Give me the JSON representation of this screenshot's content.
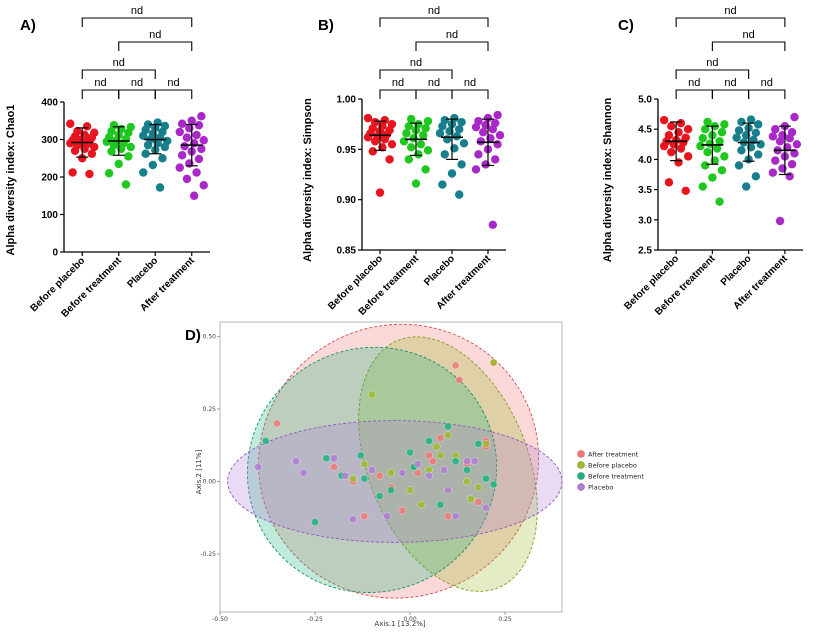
{
  "colors": {
    "before_placebo": "#e8141e",
    "before_treatment": "#1ec81e",
    "placebo": "#177e8c",
    "after_treatment": "#a828c8",
    "pcoa_after_treatment": "#f07878",
    "pcoa_before_placebo": "#9cbb2c",
    "pcoa_before_treatment": "#1cb47c",
    "pcoa_placebo": "#b07cd4"
  },
  "chart_data": [
    {
      "id": "A",
      "panel_label": "A)",
      "type": "scatter",
      "ylabel": "Alpha diversity index: Chao1",
      "ylim": [
        0,
        400
      ],
      "yticks": [
        0,
        100,
        200,
        300,
        400
      ],
      "ytick_labels": [
        "0",
        "100",
        "200",
        "300",
        "400"
      ],
      "categories": [
        "Before placebo",
        "Before treatment",
        "Placebo",
        "After treatment"
      ],
      "series": [
        {
          "name": "Before placebo",
          "mean": 292,
          "sd_low": 253,
          "sd_high": 331,
          "values": [
            342,
            335,
            322,
            318,
            312,
            308,
            305,
            301,
            298,
            295,
            293,
            290,
            288,
            285,
            280,
            275,
            270,
            262,
            250,
            212,
            208
          ]
        },
        {
          "name": "Before treatment",
          "mean": 296,
          "sd_low": 258,
          "sd_high": 334,
          "values": [
            338,
            333,
            328,
            322,
            318,
            312,
            306,
            301,
            297,
            294,
            290,
            285,
            280,
            275,
            268,
            255,
            235,
            210,
            180
          ]
        },
        {
          "name": "Placebo",
          "mean": 300,
          "sd_low": 262,
          "sd_high": 340,
          "values": [
            345,
            340,
            336,
            331,
            326,
            320,
            315,
            310,
            305,
            300,
            296,
            290,
            285,
            280,
            272,
            262,
            250,
            232,
            212,
            172
          ]
        },
        {
          "name": "After treatment",
          "mean": 285,
          "sd_low": 230,
          "sd_high": 340,
          "values": [
            362,
            350,
            342,
            338,
            330,
            320,
            312,
            305,
            298,
            290,
            282,
            275,
            268,
            258,
            248,
            236,
            225,
            212,
            195,
            178,
            150
          ]
        }
      ],
      "comparisons": [
        {
          "groups": [
            0,
            1
          ],
          "label": "nd",
          "level": 0
        },
        {
          "groups": [
            1,
            2
          ],
          "label": "nd",
          "level": 0
        },
        {
          "groups": [
            2,
            3
          ],
          "label": "nd",
          "level": 0
        },
        {
          "groups": [
            0,
            2
          ],
          "label": "nd",
          "level": 1
        },
        {
          "groups": [
            1,
            3
          ],
          "label": "nd",
          "level": 2
        },
        {
          "groups": [
            0,
            3
          ],
          "label": "nd",
          "level": 3
        }
      ]
    },
    {
      "id": "B",
      "panel_label": "B)",
      "type": "scatter",
      "ylabel": "Alpha diversity index: Simpson",
      "ylim": [
        0.85,
        1.0
      ],
      "yticks": [
        0.85,
        0.9,
        0.95,
        1.0
      ],
      "ytick_labels": [
        "0.85",
        "0.90",
        "0.95",
        "1.00"
      ],
      "categories": [
        "Before placebo",
        "Before treatment",
        "Placebo",
        "After treatment"
      ],
      "series": [
        {
          "name": "Before placebo",
          "mean": 0.964,
          "sd_low": 0.949,
          "sd_high": 0.978,
          "values": [
            0.981,
            0.979,
            0.977,
            0.975,
            0.973,
            0.971,
            0.969,
            0.968,
            0.966,
            0.965,
            0.963,
            0.962,
            0.96,
            0.958,
            0.955,
            0.952,
            0.948,
            0.94,
            0.907
          ]
        },
        {
          "name": "Before treatment",
          "mean": 0.96,
          "sd_low": 0.944,
          "sd_high": 0.976,
          "values": [
            0.98,
            0.978,
            0.975,
            0.973,
            0.971,
            0.969,
            0.966,
            0.964,
            0.961,
            0.958,
            0.955,
            0.952,
            0.949,
            0.945,
            0.94,
            0.93,
            0.916
          ]
        },
        {
          "name": "Placebo",
          "mean": 0.962,
          "sd_low": 0.94,
          "sd_high": 0.98,
          "values": [
            0.981,
            0.979,
            0.977,
            0.975,
            0.973,
            0.97,
            0.968,
            0.966,
            0.963,
            0.96,
            0.956,
            0.951,
            0.945,
            0.935,
            0.926,
            0.915,
            0.905
          ]
        },
        {
          "name": "After treatment",
          "mean": 0.957,
          "sd_low": 0.934,
          "sd_high": 0.98,
          "values": [
            0.984,
            0.981,
            0.978,
            0.976,
            0.974,
            0.972,
            0.97,
            0.967,
            0.964,
            0.961,
            0.958,
            0.955,
            0.95,
            0.945,
            0.94,
            0.935,
            0.93,
            0.875
          ]
        }
      ],
      "comparisons": [
        {
          "groups": [
            0,
            1
          ],
          "label": "nd",
          "level": 0
        },
        {
          "groups": [
            1,
            2
          ],
          "label": "nd",
          "level": 0
        },
        {
          "groups": [
            2,
            3
          ],
          "label": "nd",
          "level": 0
        },
        {
          "groups": [
            0,
            2
          ],
          "label": "nd",
          "level": 1
        },
        {
          "groups": [
            1,
            3
          ],
          "label": "nd",
          "level": 2
        },
        {
          "groups": [
            0,
            3
          ],
          "label": "nd",
          "level": 3
        }
      ]
    },
    {
      "id": "C",
      "panel_label": "C)",
      "type": "scatter",
      "ylabel": "Alpha diversity index: Shannon",
      "ylim": [
        2.5,
        5.0
      ],
      "yticks": [
        2.5,
        3.0,
        3.5,
        4.0,
        4.5,
        5.0
      ],
      "ytick_labels": [
        "2.5",
        "3.0",
        "3.5",
        "4.0",
        "4.5",
        "5.0"
      ],
      "categories": [
        "Before placebo",
        "Before treatment",
        "Placebo",
        "After treatment"
      ],
      "series": [
        {
          "name": "Before placebo",
          "mean": 4.3,
          "sd_low": 3.98,
          "sd_high": 4.62,
          "values": [
            4.65,
            4.6,
            4.55,
            4.5,
            4.45,
            4.4,
            4.36,
            4.32,
            4.3,
            4.28,
            4.25,
            4.22,
            4.18,
            4.12,
            4.05,
            3.95,
            3.62,
            3.48
          ]
        },
        {
          "name": "Before treatment",
          "mean": 4.24,
          "sd_low": 3.92,
          "sd_high": 4.55,
          "values": [
            4.62,
            4.58,
            4.55,
            4.5,
            4.45,
            4.4,
            4.35,
            4.3,
            4.26,
            4.22,
            4.18,
            4.12,
            4.05,
            3.98,
            3.9,
            3.82,
            3.7,
            3.55,
            3.3
          ]
        },
        {
          "name": "Placebo",
          "mean": 4.28,
          "sd_low": 3.97,
          "sd_high": 4.6,
          "values": [
            4.66,
            4.62,
            4.58,
            4.52,
            4.48,
            4.44,
            4.4,
            4.36,
            4.32,
            4.28,
            4.25,
            4.2,
            4.15,
            4.08,
            4.0,
            3.9,
            3.72,
            3.55
          ]
        },
        {
          "name": "After treatment",
          "mean": 4.15,
          "sd_low": 3.75,
          "sd_high": 4.55,
          "values": [
            4.7,
            4.55,
            4.5,
            4.45,
            4.4,
            4.38,
            4.35,
            4.3,
            4.25,
            4.2,
            4.15,
            4.1,
            4.05,
            3.98,
            3.92,
            3.85,
            3.78,
            3.72,
            2.98
          ]
        }
      ],
      "comparisons": [
        {
          "groups": [
            0,
            1
          ],
          "label": "nd",
          "level": 0
        },
        {
          "groups": [
            1,
            2
          ],
          "label": "nd",
          "level": 0
        },
        {
          "groups": [
            2,
            3
          ],
          "label": "nd",
          "level": 0
        },
        {
          "groups": [
            0,
            2
          ],
          "label": "nd",
          "level": 1
        },
        {
          "groups": [
            1,
            3
          ],
          "label": "nd",
          "level": 2
        },
        {
          "groups": [
            0,
            3
          ],
          "label": "nd",
          "level": 3
        }
      ]
    },
    {
      "id": "D",
      "panel_label": "D)",
      "type": "scatter",
      "xlabel": "Axis.1   [13.2%]",
      "ylabel": "Axis.2   [11%]",
      "xlim": [
        -0.5,
        0.4
      ],
      "ylim": [
        -0.45,
        0.55
      ],
      "xticks": [
        -0.5,
        -0.25,
        0.0,
        0.25
      ],
      "xtick_labels": [
        "-0.50",
        "-0.25",
        "0.00",
        "0.25"
      ],
      "yticks": [
        -0.25,
        0.0,
        0.25,
        0.5
      ],
      "ytick_labels": [
        "-0.25",
        "0.00",
        "0.25",
        "0.50"
      ],
      "legend": [
        "After treatment",
        "Before placebo",
        "Before treatment",
        "Placebo"
      ],
      "ellipses": [
        {
          "group": "After treatment",
          "cx": -0.03,
          "cy": 0.07,
          "rx": 0.37,
          "ry": 0.47,
          "angle": -22
        },
        {
          "group": "Before placebo",
          "cx": 0.1,
          "cy": 0.06,
          "rx": 0.21,
          "ry": 0.46,
          "angle": -22
        },
        {
          "group": "Before treatment",
          "cx": -0.1,
          "cy": 0.04,
          "rx": 0.33,
          "ry": 0.42,
          "angle": -28
        },
        {
          "group": "Placebo",
          "cx": -0.04,
          "cy": 0.0,
          "rx": 0.44,
          "ry": 0.21,
          "angle": 0
        }
      ],
      "series": [
        {
          "name": "After treatment",
          "x": [
            -0.35,
            -0.2,
            -0.05,
            0.05,
            0.1,
            0.2,
            -0.08,
            0.12,
            0.22,
            -0.12,
            0.02,
            0.15,
            -0.15,
            0.08,
            0.18,
            -0.02,
            0.06,
            0.13,
            0.2
          ],
          "y": [
            0.2,
            0.05,
            -0.02,
            0.09,
            -0.12,
            0.12,
            0.02,
            0.4,
            0.41,
            -0.12,
            0.03,
            0.06,
            0.0,
            0.15,
            -0.07,
            -0.1,
            0.07,
            0.35,
            0.14
          ]
        },
        {
          "name": "Before placebo",
          "x": [
            -0.1,
            -0.15,
            0.0,
            0.05,
            0.1,
            0.15,
            0.22,
            -0.05,
            0.08,
            0.18,
            0.12,
            0.03,
            -0.12,
            0.2,
            0.16,
            0.07
          ],
          "y": [
            0.3,
            0.01,
            -0.03,
            0.04,
            0.16,
            0.0,
            0.41,
            0.03,
            0.09,
            -0.02,
            0.09,
            -0.08,
            0.06,
            0.13,
            -0.06,
            0.12
          ]
        },
        {
          "name": "Before treatment",
          "x": [
            -0.38,
            -0.25,
            -0.22,
            -0.18,
            -0.12,
            -0.08,
            0.0,
            0.05,
            0.1,
            0.15,
            0.2,
            -0.05,
            0.12,
            -0.13,
            0.08,
            0.18,
            0.22,
            0.01
          ],
          "y": [
            0.14,
            -0.14,
            0.08,
            0.02,
            0.01,
            -0.05,
            0.1,
            0.14,
            0.19,
            0.04,
            0.01,
            -0.03,
            0.07,
            0.09,
            -0.08,
            0.13,
            -0.01,
            0.05
          ]
        },
        {
          "name": "Placebo",
          "x": [
            -0.4,
            -0.3,
            -0.28,
            -0.2,
            -0.15,
            -0.1,
            -0.02,
            0.05,
            0.1,
            0.15,
            0.2,
            -0.06,
            0.02,
            0.12,
            -0.17,
            0.09,
            0.17
          ],
          "y": [
            0.05,
            0.07,
            0.03,
            0.08,
            -0.13,
            0.04,
            0.03,
            0.02,
            -0.03,
            0.07,
            -0.09,
            -0.12,
            0.06,
            -0.12,
            0.02,
            0.04,
            0.07
          ]
        }
      ]
    }
  ]
}
